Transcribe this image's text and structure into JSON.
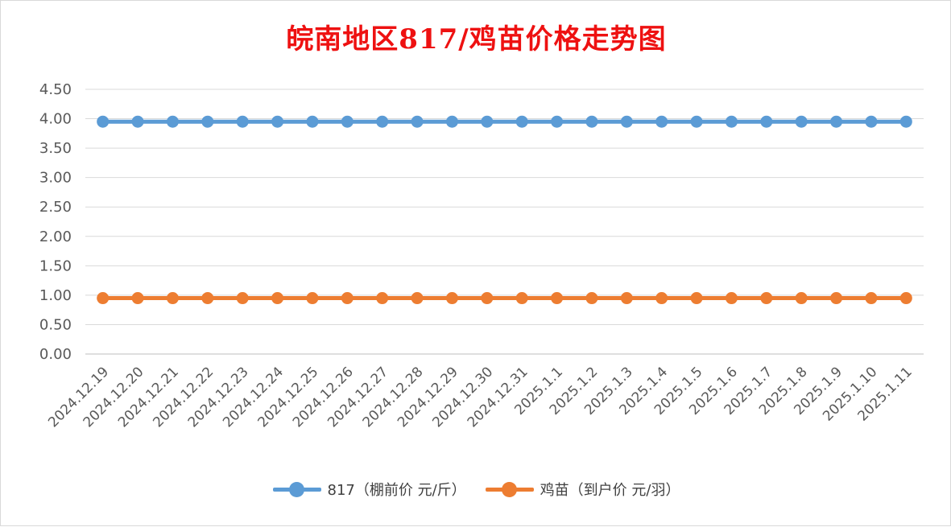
{
  "colors": {
    "title": "#ee1111",
    "series_817": "#5b9bd5",
    "series_chick": "#ed7d31",
    "grid": "#d9d9d9",
    "text": "#595959"
  },
  "chart_data": {
    "type": "line",
    "title": "皖南地区817/鸡苗价格走势图",
    "xlabel": "",
    "ylabel": "",
    "ylim": [
      0,
      4.5
    ],
    "yticks": [
      "0.00",
      "0.50",
      "1.00",
      "1.50",
      "2.00",
      "2.50",
      "3.00",
      "3.50",
      "4.00",
      "4.50"
    ],
    "categories": [
      "2024.12.19",
      "2024.12.20",
      "2024.12.21",
      "2024.12.22",
      "2024.12.23",
      "2024.12.24",
      "2024.12.25",
      "2024.12.26",
      "2024.12.27",
      "2024.12.28",
      "2024.12.29",
      "2024.12.30",
      "2024.12.31",
      "2025.1.1",
      "2025.1.2",
      "2025.1.3",
      "2025.1.4",
      "2025.1.5",
      "2025.1.6",
      "2025.1.7",
      "2025.1.8",
      "2025.1.9",
      "2025.1.10",
      "2025.1.11"
    ],
    "series": [
      {
        "name": "817（棚前价 元/斤）",
        "values": [
          3.95,
          3.95,
          3.95,
          3.95,
          3.95,
          3.95,
          3.95,
          3.95,
          3.95,
          3.95,
          3.95,
          3.95,
          3.95,
          3.95,
          3.95,
          3.95,
          3.95,
          3.95,
          3.95,
          3.95,
          3.95,
          3.95,
          3.95,
          3.95
        ]
      },
      {
        "name": "鸡苗（到户价 元/羽）",
        "values": [
          0.95,
          0.95,
          0.95,
          0.95,
          0.95,
          0.95,
          0.95,
          0.95,
          0.95,
          0.95,
          0.95,
          0.95,
          0.95,
          0.95,
          0.95,
          0.95,
          0.95,
          0.95,
          0.95,
          0.95,
          0.95,
          0.95,
          0.95,
          0.95
        ]
      }
    ],
    "grid": true,
    "legend_position": "bottom"
  }
}
